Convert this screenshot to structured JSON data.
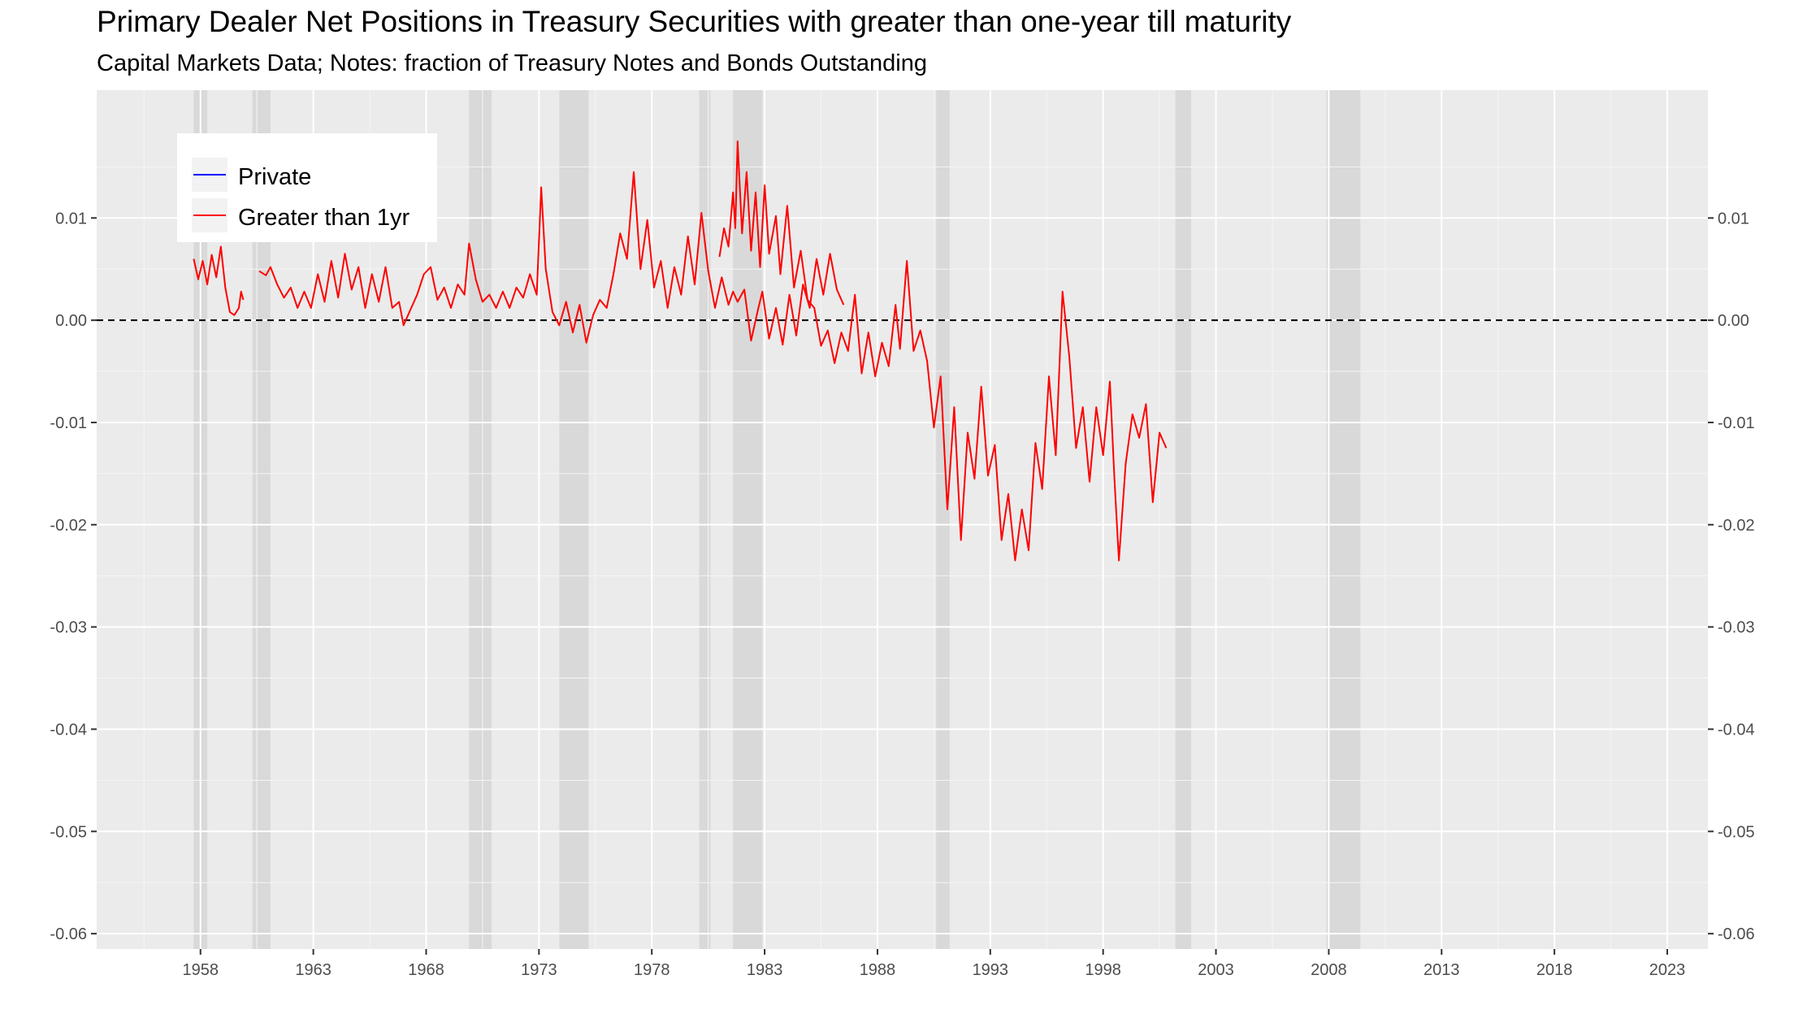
{
  "title": "Primary Dealer Net Positions in Treasury Securities with greater than one-year till maturity",
  "subtitle": "Capital Markets Data; Notes: fraction of Treasury Notes and Bonds Outstanding",
  "chart_data": {
    "type": "line",
    "xlim": [
      1953.4,
      2024.8
    ],
    "ylim": [
      -0.0615,
      0.0225
    ],
    "x_ticks": [
      1958,
      1963,
      1968,
      1973,
      1978,
      1983,
      1988,
      1993,
      1998,
      2003,
      2008,
      2013,
      2018,
      2023
    ],
    "x_tick_labels": [
      "1958",
      "1963",
      "1968",
      "1973",
      "1978",
      "1983",
      "1988",
      "1993",
      "1998",
      "2003",
      "2008",
      "2013",
      "2018",
      "2023"
    ],
    "y_ticks": [
      0.01,
      0.0,
      -0.01,
      -0.02,
      -0.03,
      -0.04,
      -0.05,
      -0.06
    ],
    "y_tick_labels": [
      "0.01",
      "0.00",
      "-0.01",
      "-0.02",
      "-0.03",
      "-0.04",
      "-0.05",
      "-0.06"
    ],
    "y_axis_mirrored": true,
    "grid": true,
    "reference_line": {
      "y": 0.0,
      "style": "dashed",
      "color": "#000000"
    },
    "recession_shading": [
      [
        1957.7,
        1958.3
      ],
      [
        1960.3,
        1961.1
      ],
      [
        1969.9,
        1970.9
      ],
      [
        1973.9,
        1975.2
      ],
      [
        1980.1,
        1980.6
      ],
      [
        1981.6,
        1982.9
      ],
      [
        1990.6,
        1991.2
      ],
      [
        2001.2,
        2001.9
      ],
      [
        2007.9,
        2009.4
      ]
    ],
    "legend": {
      "position": "top-left",
      "entries": [
        "Private",
        "Greater than 1yr"
      ]
    },
    "series": [
      {
        "name": "Private",
        "color": "#0000ff",
        "values": []
      },
      {
        "name": "Greater than 1yr",
        "color": "#ff0000",
        "segments": [
          [
            [
              1957.7,
              0.006
            ],
            [
              1957.9,
              0.004
            ],
            [
              1958.1,
              0.0058
            ],
            [
              1958.3,
              0.0035
            ],
            [
              1958.5,
              0.0064
            ],
            [
              1958.7,
              0.0042
            ],
            [
              1958.9,
              0.0072
            ],
            [
              1959.1,
              0.0032
            ],
            [
              1959.3,
              0.0008
            ],
            [
              1959.5,
              0.0005
            ],
            [
              1959.7,
              0.0012
            ],
            [
              1959.8,
              0.0028
            ],
            [
              1959.9,
              0.002
            ]
          ],
          [
            [
              1960.6,
              0.0048
            ],
            [
              1960.9,
              0.0044
            ],
            [
              1961.1,
              0.0052
            ],
            [
              1961.4,
              0.0035
            ],
            [
              1961.7,
              0.0022
            ],
            [
              1962.0,
              0.0032
            ],
            [
              1962.3,
              0.0012
            ],
            [
              1962.6,
              0.0028
            ],
            [
              1962.9,
              0.0012
            ],
            [
              1963.2,
              0.0045
            ],
            [
              1963.5,
              0.0018
            ],
            [
              1963.8,
              0.0058
            ],
            [
              1964.1,
              0.0022
            ],
            [
              1964.4,
              0.0065
            ],
            [
              1964.7,
              0.003
            ],
            [
              1965.0,
              0.0052
            ],
            [
              1965.3,
              0.0012
            ],
            [
              1965.6,
              0.0045
            ],
            [
              1965.9,
              0.0018
            ],
            [
              1966.2,
              0.0052
            ],
            [
              1966.5,
              0.0012
            ],
            [
              1966.8,
              0.0018
            ],
            [
              1967.0,
              -0.0005
            ],
            [
              1967.3,
              0.001
            ],
            [
              1967.6,
              0.0025
            ],
            [
              1967.9,
              0.0045
            ],
            [
              1968.2,
              0.0052
            ],
            [
              1968.5,
              0.002
            ],
            [
              1968.8,
              0.0032
            ],
            [
              1969.1,
              0.0012
            ],
            [
              1969.4,
              0.0035
            ],
            [
              1969.7,
              0.0025
            ],
            [
              1969.9,
              0.0075
            ],
            [
              1970.2,
              0.004
            ],
            [
              1970.5,
              0.0018
            ],
            [
              1970.8,
              0.0025
            ],
            [
              1971.1,
              0.0012
            ],
            [
              1971.4,
              0.0028
            ],
            [
              1971.7,
              0.0012
            ],
            [
              1972.0,
              0.0032
            ],
            [
              1972.3,
              0.0022
            ],
            [
              1972.6,
              0.0045
            ],
            [
              1972.9,
              0.0025
            ],
            [
              1973.1,
              0.013
            ],
            [
              1973.3,
              0.005
            ],
            [
              1973.6,
              0.0008
            ],
            [
              1973.9,
              -0.0005
            ],
            [
              1974.2,
              0.0018
            ],
            [
              1974.5,
              -0.0012
            ],
            [
              1974.8,
              0.0015
            ],
            [
              1975.1,
              -0.0022
            ],
            [
              1975.4,
              0.0005
            ],
            [
              1975.7,
              0.002
            ],
            [
              1976.0,
              0.0012
            ],
            [
              1976.3,
              0.0045
            ],
            [
              1976.6,
              0.0085
            ],
            [
              1976.9,
              0.006
            ],
            [
              1977.2,
              0.0145
            ],
            [
              1977.5,
              0.005
            ],
            [
              1977.8,
              0.0098
            ],
            [
              1978.1,
              0.0032
            ],
            [
              1978.4,
              0.0058
            ],
            [
              1978.7,
              0.0012
            ],
            [
              1979.0,
              0.0052
            ],
            [
              1979.3,
              0.0025
            ],
            [
              1979.6,
              0.0082
            ],
            [
              1979.9,
              0.0035
            ],
            [
              1980.2,
              0.0105
            ],
            [
              1980.5,
              0.0048
            ],
            [
              1980.8,
              0.0012
            ],
            [
              1981.1,
              0.0042
            ],
            [
              1981.4,
              0.0015
            ],
            [
              1981.6,
              0.0028
            ],
            [
              1981.8,
              0.0018
            ],
            [
              1982.1,
              0.003
            ],
            [
              1982.4,
              -0.002
            ],
            [
              1982.7,
              0.001
            ],
            [
              1982.9,
              0.0028
            ],
            [
              1983.2,
              -0.0018
            ],
            [
              1983.5,
              0.0012
            ],
            [
              1983.8,
              -0.0024
            ],
            [
              1984.1,
              0.0025
            ],
            [
              1984.4,
              -0.0015
            ],
            [
              1984.7,
              0.0035
            ],
            [
              1985.0,
              0.0012
            ],
            [
              1985.3,
              0.006
            ],
            [
              1985.6,
              0.0025
            ],
            [
              1985.9,
              0.0065
            ],
            [
              1986.2,
              0.003
            ],
            [
              1986.5,
              0.0015
            ]
          ],
          [
            [
              1981.0,
              0.0062
            ],
            [
              1981.2,
              0.009
            ],
            [
              1981.4,
              0.0072
            ],
            [
              1981.6,
              0.0125
            ],
            [
              1981.7,
              0.009
            ],
            [
              1981.8,
              0.0175
            ],
            [
              1982.0,
              0.0085
            ],
            [
              1982.2,
              0.0145
            ],
            [
              1982.4,
              0.0068
            ],
            [
              1982.6,
              0.0125
            ],
            [
              1982.8,
              0.0052
            ],
            [
              1983.0,
              0.0132
            ],
            [
              1983.2,
              0.0065
            ],
            [
              1983.5,
              0.0102
            ],
            [
              1983.7,
              0.0045
            ],
            [
              1984.0,
              0.0112
            ],
            [
              1984.3,
              0.0032
            ],
            [
              1984.6,
              0.0068
            ],
            [
              1984.9,
              0.002
            ],
            [
              1985.2,
              0.0012
            ],
            [
              1985.5,
              -0.0025
            ],
            [
              1985.8,
              -0.001
            ],
            [
              1986.1,
              -0.0042
            ],
            [
              1986.4,
              -0.0012
            ],
            [
              1986.7,
              -0.003
            ],
            [
              1987.0,
              0.0025
            ],
            [
              1987.3,
              -0.0052
            ],
            [
              1987.6,
              -0.0012
            ],
            [
              1987.9,
              -0.0055
            ],
            [
              1988.2,
              -0.0022
            ],
            [
              1988.5,
              -0.0045
            ],
            [
              1988.8,
              0.0015
            ],
            [
              1989.0,
              -0.0028
            ],
            [
              1989.3,
              0.0058
            ],
            [
              1989.6,
              -0.003
            ],
            [
              1989.9,
              -0.001
            ],
            [
              1990.2,
              -0.004
            ],
            [
              1990.5,
              -0.0105
            ],
            [
              1990.8,
              -0.0055
            ],
            [
              1991.1,
              -0.0185
            ],
            [
              1991.4,
              -0.0085
            ],
            [
              1991.7,
              -0.0215
            ],
            [
              1992.0,
              -0.011
            ],
            [
              1992.3,
              -0.0155
            ],
            [
              1992.6,
              -0.0065
            ],
            [
              1992.9,
              -0.0152
            ],
            [
              1993.2,
              -0.0122
            ],
            [
              1993.5,
              -0.0215
            ],
            [
              1993.8,
              -0.017
            ],
            [
              1994.1,
              -0.0235
            ],
            [
              1994.4,
              -0.0185
            ],
            [
              1994.7,
              -0.0225
            ],
            [
              1995.0,
              -0.012
            ],
            [
              1995.3,
              -0.0165
            ],
            [
              1995.6,
              -0.0055
            ],
            [
              1995.9,
              -0.0132
            ],
            [
              1996.2,
              0.0028
            ],
            [
              1996.5,
              -0.0035
            ],
            [
              1996.8,
              -0.0125
            ],
            [
              1997.1,
              -0.0085
            ],
            [
              1997.4,
              -0.0158
            ],
            [
              1997.7,
              -0.0085
            ],
            [
              1998.0,
              -0.0132
            ],
            [
              1998.3,
              -0.006
            ],
            [
              1998.5,
              -0.0155
            ],
            [
              1998.7,
              -0.0235
            ],
            [
              1999.0,
              -0.014
            ],
            [
              1999.3,
              -0.0092
            ],
            [
              1999.6,
              -0.0115
            ],
            [
              1999.9,
              -0.0082
            ],
            [
              2000.2,
              -0.0178
            ],
            [
              2000.5,
              -0.011
            ],
            [
              2000.8,
              -0.0125
            ]
          ]
        ]
      }
    ]
  }
}
